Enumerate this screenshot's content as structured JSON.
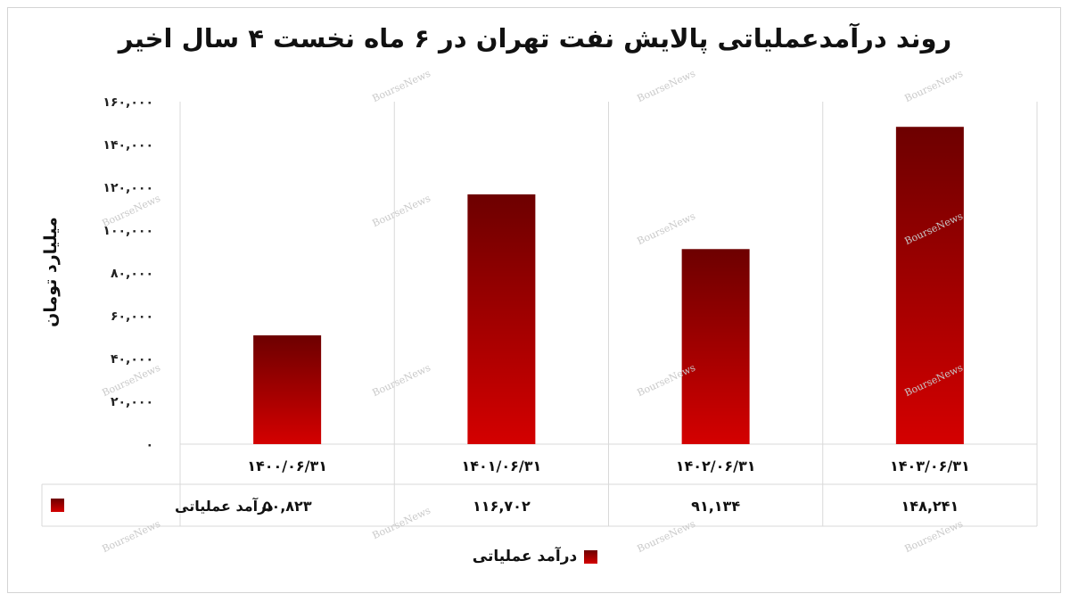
{
  "title": "روند درآمدعملیاتی پالایش نفت تهران در ۶ ماه نخست ۴ سال اخیر",
  "watermark": "BourseNews",
  "colors": {
    "bar_top": "#6d0000",
    "bar_bottom": "#d40000",
    "grid": "#d9d9d9"
  },
  "chart_data": {
    "type": "bar",
    "title": "روند درآمدعملیاتی پالایش نفت تهران در ۶ ماه نخست ۴ سال اخیر",
    "xlabel": "",
    "ylabel": "میلیارد تومان",
    "categories": [
      "۱۴۰۰/۰۶/۳۱",
      "۱۴۰۱/۰۶/۳۱",
      "۱۴۰۲/۰۶/۳۱",
      "۱۴۰۳/۰۶/۳۱"
    ],
    "series": [
      {
        "name": "درآمد عملیاتی",
        "values": [
          50823,
          116702,
          91134,
          148241
        ],
        "labels": [
          "۵۰,۸۲۳",
          "۱۱۶,۷۰۲",
          "۹۱,۱۳۴",
          "۱۴۸,۲۴۱"
        ]
      }
    ],
    "ylim": [
      0,
      160000
    ],
    "yticks": [
      0,
      20000,
      40000,
      60000,
      80000,
      100000,
      120000,
      140000,
      160000
    ],
    "ytick_labels": [
      "۰",
      "۲۰,۰۰۰",
      "۴۰,۰۰۰",
      "۶۰,۰۰۰",
      "۸۰,۰۰۰",
      "۱۰۰,۰۰۰",
      "۱۲۰,۰۰۰",
      "۱۴۰,۰۰۰",
      "۱۶۰,۰۰۰"
    ],
    "grid": true,
    "data_table": true,
    "legend_position": "bottom"
  }
}
